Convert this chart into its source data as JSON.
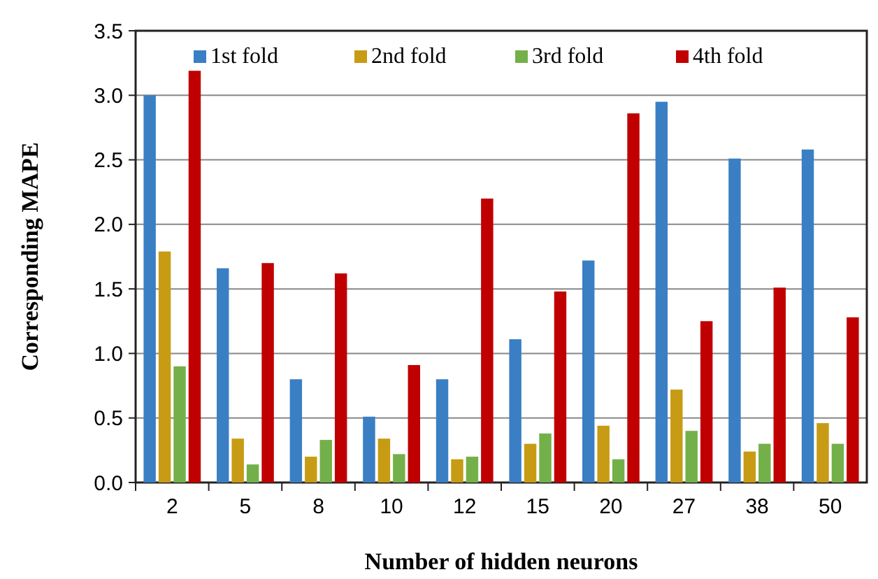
{
  "chart_data": {
    "type": "bar",
    "xlabel": "Number of hidden neurons",
    "ylabel": "Corresponding MAPE",
    "categories": [
      "2",
      "5",
      "8",
      "10",
      "12",
      "15",
      "20",
      "27",
      "38",
      "50"
    ],
    "series": [
      {
        "name": "1st fold",
        "color": "#3a7fc4",
        "values": [
          3.0,
          1.66,
          0.8,
          0.51,
          0.8,
          1.11,
          1.72,
          2.95,
          2.51,
          2.58
        ]
      },
      {
        "name": "2nd fold",
        "color": "#c89b14",
        "values": [
          1.79,
          0.34,
          0.2,
          0.34,
          0.18,
          0.3,
          0.44,
          0.72,
          0.24,
          0.46
        ]
      },
      {
        "name": "3rd fold",
        "color": "#74b04a",
        "values": [
          0.9,
          0.14,
          0.33,
          0.22,
          0.2,
          0.38,
          0.18,
          0.4,
          0.3,
          0.3
        ]
      },
      {
        "name": "4th fold",
        "color": "#c00000",
        "values": [
          3.19,
          1.7,
          1.62,
          0.91,
          2.2,
          1.48,
          2.86,
          1.25,
          1.51,
          1.28
        ]
      }
    ],
    "ylim": [
      0,
      3.5
    ],
    "yticks": [
      {
        "value": 0,
        "label": "0.0"
      },
      {
        "value": 0.5,
        "label": "0.5"
      },
      {
        "value": 1,
        "label": "1.0"
      },
      {
        "value": 1.5,
        "label": "1.5"
      },
      {
        "value": 2,
        "label": "2.0"
      },
      {
        "value": 2.5,
        "label": "2.5"
      },
      {
        "value": 3,
        "label": "3.0"
      },
      {
        "value": 3.5,
        "label": "3.5"
      }
    ],
    "grid": "y",
    "legend": "top"
  }
}
